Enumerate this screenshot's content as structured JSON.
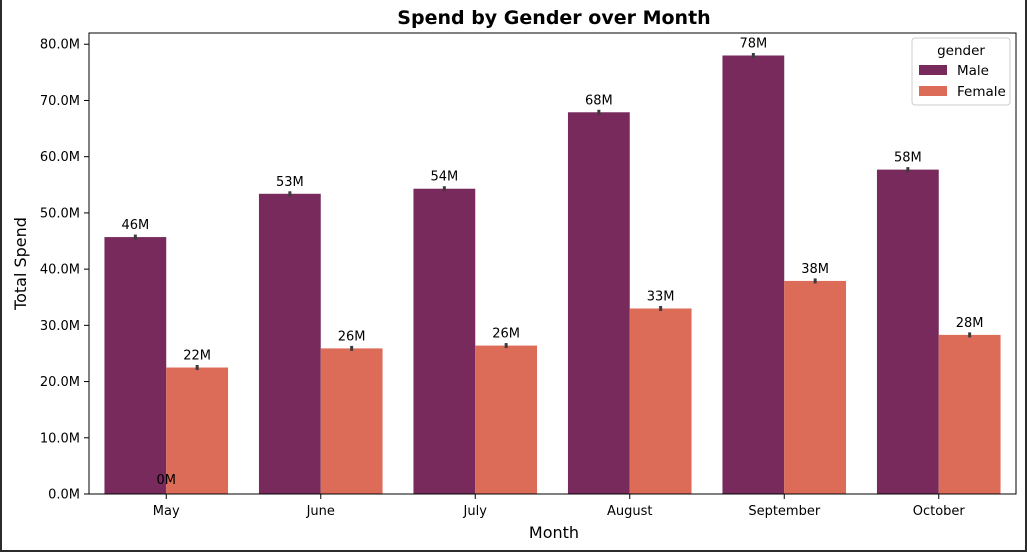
{
  "chart_data": {
    "type": "bar",
    "title": "Spend by Gender over Month",
    "xlabel": "Month",
    "ylabel": "Total Spend",
    "categories": [
      "May",
      "June",
      "July",
      "August",
      "September",
      "October"
    ],
    "series": [
      {
        "name": "Male",
        "color": "#772a5b",
        "values": [
          45.7,
          53.4,
          54.3,
          67.9,
          78.0,
          57.7
        ],
        "labels": [
          "46M",
          "53M",
          "54M",
          "68M",
          "78M",
          "58M"
        ]
      },
      {
        "name": "Female",
        "color": "#dc6c57",
        "values": [
          22.5,
          25.9,
          26.4,
          33.0,
          37.9,
          28.3
        ],
        "labels": [
          "22M",
          "26M",
          "26M",
          "33M",
          "38M",
          "28M"
        ]
      }
    ],
    "ylim": [
      0,
      82
    ],
    "yticks": [
      0,
      10,
      20,
      30,
      40,
      50,
      60,
      70,
      80
    ],
    "ytick_labels": [
      "0.0M",
      "10.0M",
      "20.0M",
      "30.0M",
      "40.0M",
      "50.0M",
      "60.0M",
      "70.0M",
      "80.0M"
    ],
    "legend": {
      "title": "gender",
      "position": "top-right"
    },
    "extra_annotation": {
      "text": "0M",
      "category": "May"
    },
    "grid": false,
    "error_bars": true
  }
}
